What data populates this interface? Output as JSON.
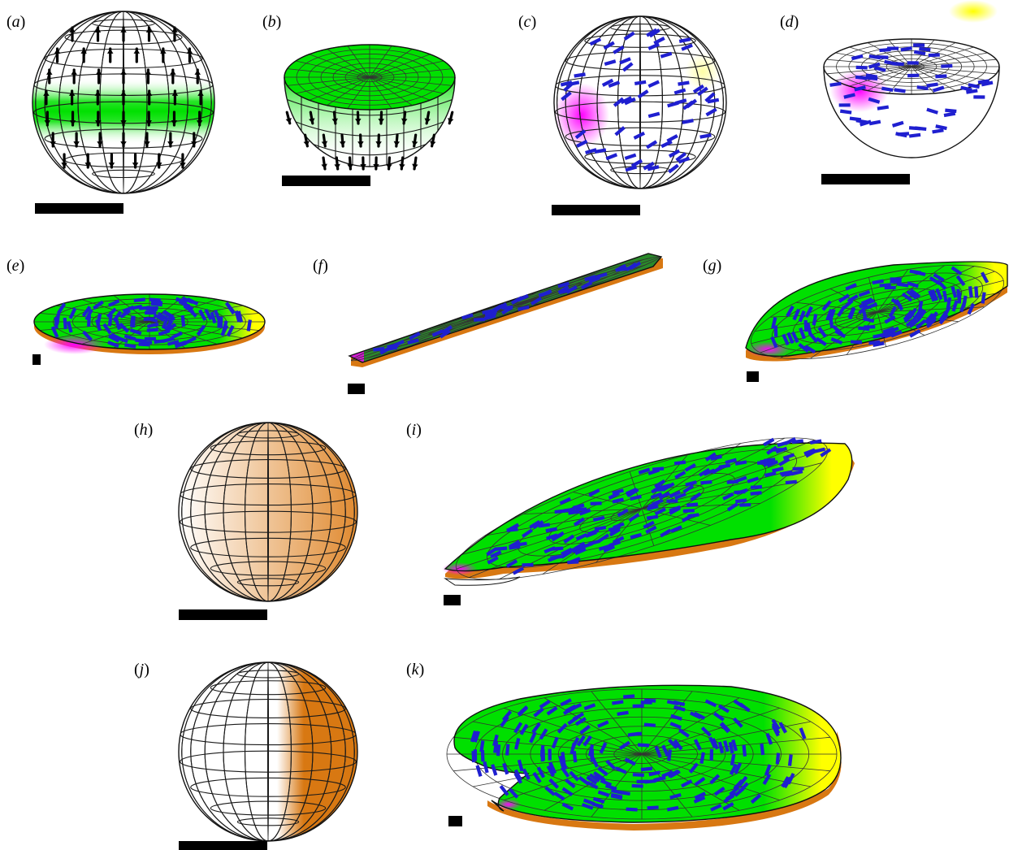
{
  "figure": {
    "panels": [
      {
        "id": "a",
        "label": "a"
      },
      {
        "id": "b",
        "label": "b"
      },
      {
        "id": "c",
        "label": "c"
      },
      {
        "id": "d",
        "label": "d"
      },
      {
        "id": "e",
        "label": "e"
      },
      {
        "id": "f",
        "label": "f"
      },
      {
        "id": "g",
        "label": "g"
      },
      {
        "id": "h",
        "label": "h"
      },
      {
        "id": "i",
        "label": "i"
      },
      {
        "id": "j",
        "label": "j"
      },
      {
        "id": "k",
        "label": "k"
      }
    ],
    "colors": {
      "green": "#00e000",
      "yellow": "#ffff00",
      "magenta": "#ff00ff",
      "orange": "#d87812",
      "blue_arrow": "#1f1fd0",
      "black_arrow": "#000000",
      "scale_bar": "#000000"
    }
  }
}
